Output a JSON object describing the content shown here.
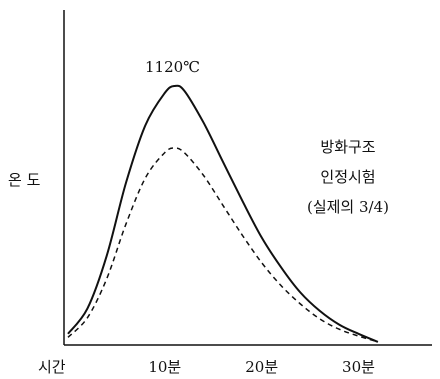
{
  "chart_data": {
    "type": "line",
    "xlabel": "시간",
    "ylabel": "온 도",
    "x_ticks": [
      "10분",
      "20분",
      "30분"
    ],
    "x_tick_values": [
      10,
      20,
      30
    ],
    "xlim": [
      0,
      38
    ],
    "ylim": [
      0,
      1460
    ],
    "peak_annotation": "1120℃",
    "note_lines": [
      "방화구조",
      "인정시험",
      "(실제의 3/4)"
    ],
    "series": [
      {
        "style": "solid",
        "x": [
          0,
          2,
          4,
          6,
          8,
          10,
          11,
          12,
          14,
          16,
          18,
          20,
          22,
          24,
          26,
          28,
          30,
          32
        ],
        "y": [
          40,
          150,
          380,
          700,
          950,
          1090,
          1120,
          1100,
          960,
          790,
          620,
          460,
          330,
          220,
          140,
          80,
          40,
          5
        ]
      },
      {
        "style": "dashed",
        "x": [
          0,
          2,
          4,
          6,
          8,
          10,
          11,
          12,
          14,
          16,
          18,
          20,
          22,
          24,
          26,
          28,
          30,
          32
        ],
        "y": [
          25,
          110,
          280,
          520,
          720,
          830,
          850,
          830,
          730,
          600,
          470,
          350,
          250,
          170,
          105,
          60,
          30,
          5
        ]
      }
    ]
  }
}
